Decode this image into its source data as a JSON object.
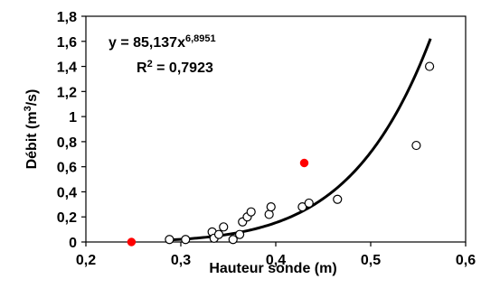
{
  "chart_data": {
    "type": "scatter",
    "xlabel": "Hauteur sonde (m)",
    "ylabel_parts": {
      "main": "Débit (m",
      "sup": "3",
      "end": "/s)"
    },
    "xlim": [
      0.2,
      0.6
    ],
    "ylim": [
      0,
      1.8
    ],
    "x_ticks": [
      "0,2",
      "0,3",
      "0,4",
      "0,5",
      "0,6"
    ],
    "y_ticks": [
      "0",
      "0,2",
      "0,4",
      "0,6",
      "0,8",
      "1",
      "1,2",
      "1,4",
      "1,6",
      "1,8"
    ],
    "grid": false,
    "series": [
      {
        "style": "open-circles",
        "color": "#000000",
        "points": [
          [
            0.288,
            0.02
          ],
          [
            0.305,
            0.02
          ],
          [
            0.333,
            0.08
          ],
          [
            0.335,
            0.03
          ],
          [
            0.34,
            0.06
          ],
          [
            0.345,
            0.12
          ],
          [
            0.355,
            0.02
          ],
          [
            0.362,
            0.06
          ],
          [
            0.365,
            0.16
          ],
          [
            0.37,
            0.2
          ],
          [
            0.374,
            0.24
          ],
          [
            0.393,
            0.22
          ],
          [
            0.395,
            0.28
          ],
          [
            0.428,
            0.28
          ],
          [
            0.435,
            0.31
          ],
          [
            0.465,
            0.34
          ],
          [
            0.548,
            0.77
          ],
          [
            0.562,
            1.4
          ]
        ]
      },
      {
        "style": "filled-circles",
        "color": "#ff0000",
        "points": [
          [
            0.248,
            0.0
          ],
          [
            0.43,
            0.63
          ]
        ]
      }
    ],
    "trendline": {
      "type": "power",
      "coefficient": 85.137,
      "exponent": 6.8951,
      "x_range": [
        0.292,
        0.563
      ],
      "color": "#000000"
    },
    "annotations": {
      "equation_main": "y = 85,137x",
      "equation_exp": "6,8951",
      "r2_main": "R",
      "r2_sup": "2",
      "r2_value": " = 0,7923"
    }
  }
}
